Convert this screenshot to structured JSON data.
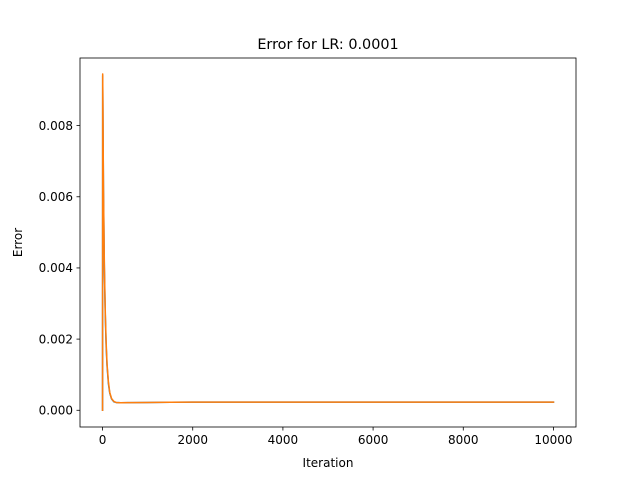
{
  "chart_data": {
    "type": "line",
    "title": "Error for LR: 0.0001",
    "xlabel": "Iteration",
    "ylabel": "Error",
    "xlim": [
      -500,
      10500
    ],
    "ylim": [
      -0.00047,
      0.0099
    ],
    "xticks": [
      0,
      2000,
      4000,
      6000,
      8000,
      10000
    ],
    "xtick_labels": [
      "0",
      "2000",
      "4000",
      "6000",
      "8000",
      "10000"
    ],
    "yticks": [
      0,
      0.002,
      0.004,
      0.006,
      0.008
    ],
    "ytick_labels": [
      "0.000",
      "0.002",
      "0.004",
      "0.006",
      "0.008"
    ],
    "grid": false,
    "series": [
      {
        "color": "#1f77b4",
        "x": [
          0,
          3,
          8,
          20,
          40,
          60,
          80,
          100,
          130,
          160,
          200,
          250,
          300,
          400,
          600,
          1000,
          1500,
          2000,
          3000,
          5000,
          7000,
          10000
        ],
        "y": [
          0.0,
          0.0094,
          0.0085,
          0.0062,
          0.004,
          0.0027,
          0.0018,
          0.00125,
          0.00075,
          0.00048,
          0.00032,
          0.00024,
          0.00022,
          0.00021,
          0.000215,
          0.00022,
          0.000225,
          0.00023,
          0.00023,
          0.00023,
          0.00023,
          0.00023
        ]
      },
      {
        "color": "#ff7f0e",
        "x": [
          0,
          3,
          8,
          20,
          40,
          60,
          80,
          100,
          130,
          160,
          200,
          250,
          300,
          400,
          600,
          1000,
          1500,
          2000,
          3000,
          5000,
          7000,
          10000
        ],
        "y": [
          0.0,
          0.00945,
          0.0086,
          0.0063,
          0.0041,
          0.0028,
          0.0019,
          0.0013,
          0.0008,
          0.0005,
          0.00033,
          0.00025,
          0.00022,
          0.00021,
          0.000215,
          0.00022,
          0.000225,
          0.00023,
          0.00023,
          0.00023,
          0.00023,
          0.00023
        ]
      }
    ]
  }
}
